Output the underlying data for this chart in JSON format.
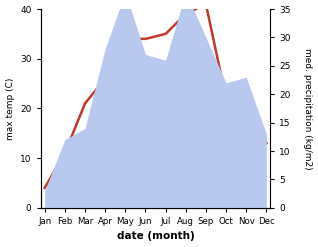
{
  "months": [
    "Jan",
    "Feb",
    "Mar",
    "Apr",
    "May",
    "Jun",
    "Jul",
    "Aug",
    "Sep",
    "Oct",
    "Nov",
    "Dec"
  ],
  "temperature": [
    4,
    11,
    21,
    26,
    34,
    34,
    35,
    39,
    41,
    22,
    23,
    13
  ],
  "precipitation": [
    3,
    12,
    14,
    28,
    38,
    27,
    26,
    38,
    30,
    22,
    23,
    13
  ],
  "temp_color": "#c0392b",
  "precip_color": "#b8c8ee",
  "temp_ylim": [
    0,
    40
  ],
  "precip_ylim": [
    0,
    35
  ],
  "temp_yticks": [
    0,
    10,
    20,
    30,
    40
  ],
  "precip_yticks": [
    0,
    5,
    10,
    15,
    20,
    25,
    30,
    35
  ],
  "xlabel": "date (month)",
  "ylabel_left": "max temp (C)",
  "ylabel_right": "med. precipitation (kg/m2)",
  "background_color": "#ffffff"
}
